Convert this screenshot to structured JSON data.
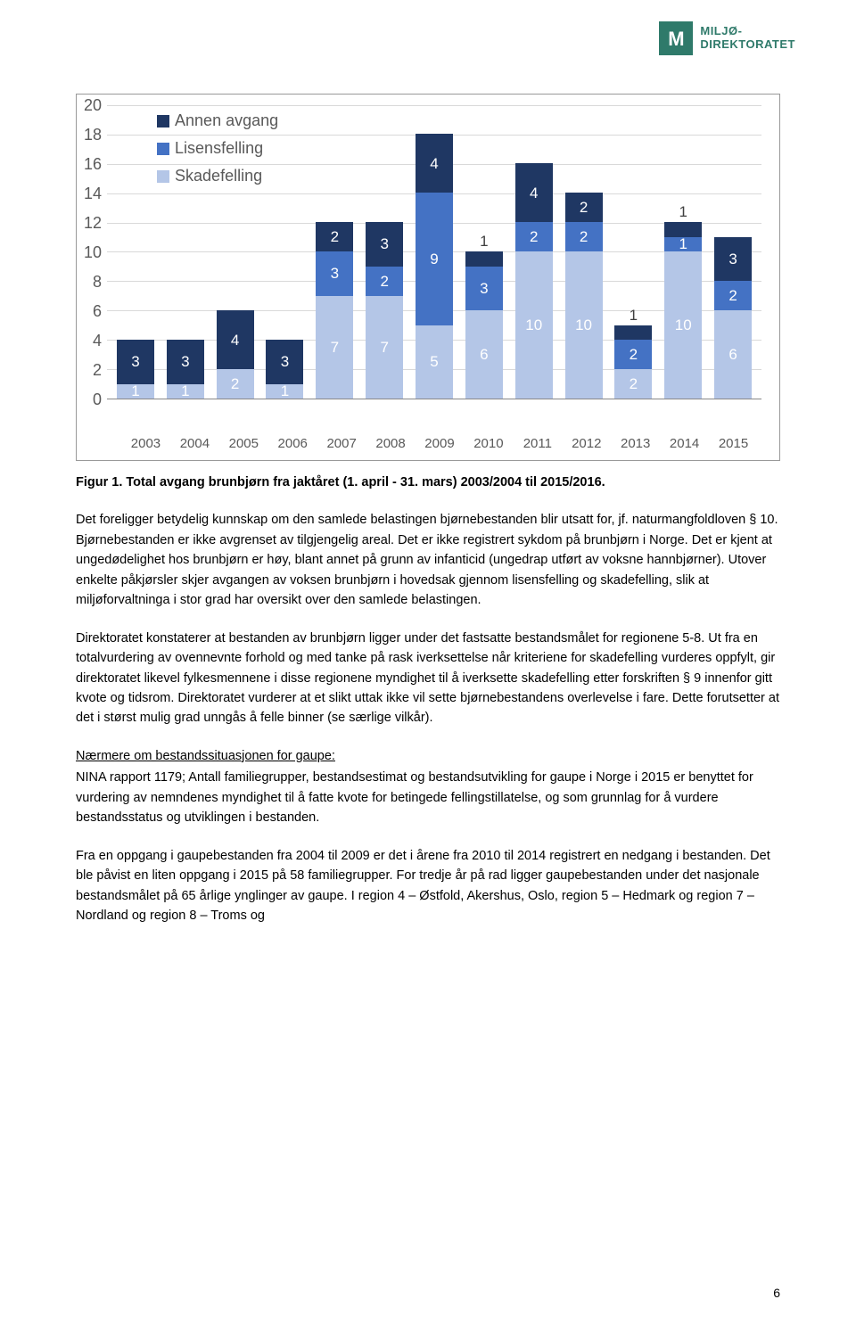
{
  "logo": {
    "line1": "MILJØ-",
    "line2": "DIREKTORATET",
    "letter": "M"
  },
  "chart": {
    "type": "stacked-bar",
    "ylim": [
      0,
      20
    ],
    "ytick_step": 2,
    "y_ticks": [
      "20",
      "18",
      "16",
      "14",
      "12",
      "10",
      "8",
      "6",
      "4",
      "2",
      "0"
    ],
    "grid_color": "#d9d9d9",
    "axis_text_color": "#595959",
    "years": [
      "2003",
      "2004",
      "2005",
      "2006",
      "2007",
      "2008",
      "2009",
      "2010",
      "2011",
      "2012",
      "2013",
      "2014",
      "2015"
    ],
    "legend": [
      {
        "label": "Annen avgang",
        "color": "#1f3763"
      },
      {
        "label": "Lisensfelling",
        "color": "#4472c4"
      },
      {
        "label": "Skadefelling",
        "color": "#b4c6e7"
      }
    ],
    "stacks": [
      [
        {
          "v": 1,
          "c": "#b4c6e7"
        },
        {
          "v": 3,
          "c": "#1f3763"
        }
      ],
      [
        {
          "v": 1,
          "c": "#b4c6e7"
        },
        {
          "v": 3,
          "c": "#1f3763"
        }
      ],
      [
        {
          "v": 2,
          "c": "#b4c6e7"
        },
        {
          "v": 4,
          "c": "#1f3763"
        }
      ],
      [
        {
          "v": 1,
          "c": "#b4c6e7"
        },
        {
          "v": 3,
          "c": "#1f3763"
        }
      ],
      [
        {
          "v": 7,
          "c": "#b4c6e7"
        },
        {
          "v": 3,
          "c": "#4472c4"
        },
        {
          "v": 2,
          "c": "#1f3763"
        }
      ],
      [
        {
          "v": 7,
          "c": "#b4c6e7"
        },
        {
          "v": 2,
          "c": "#4472c4"
        },
        {
          "v": 3,
          "c": "#1f3763"
        }
      ],
      [
        {
          "v": 5,
          "c": "#b4c6e7"
        },
        {
          "v": 9,
          "c": "#4472c4"
        },
        {
          "v": 4,
          "c": "#1f3763"
        }
      ],
      [
        {
          "v": 6,
          "c": "#b4c6e7"
        },
        {
          "v": 3,
          "c": "#4472c4"
        },
        {
          "v": 1,
          "c": "#1f3763",
          "outside": true
        }
      ],
      [
        {
          "v": 10,
          "c": "#b4c6e7"
        },
        {
          "v": 2,
          "c": "#4472c4"
        },
        {
          "v": 4,
          "c": "#1f3763"
        }
      ],
      [
        {
          "v": 10,
          "c": "#b4c6e7"
        },
        {
          "v": 2,
          "c": "#4472c4"
        },
        {
          "v": 2,
          "c": "#1f3763"
        }
      ],
      [
        {
          "v": 2,
          "c": "#b4c6e7"
        },
        {
          "v": 2,
          "c": "#4472c4"
        },
        {
          "v": 1,
          "c": "#1f3763",
          "outside": true
        }
      ],
      [
        {
          "v": 10,
          "c": "#b4c6e7"
        },
        {
          "v": 1,
          "c": "#4472c4"
        },
        {
          "v": 1,
          "c": "#1f3763",
          "outside": true
        }
      ],
      [
        {
          "v": 6,
          "c": "#b4c6e7"
        },
        {
          "v": 2,
          "c": "#4472c4"
        },
        {
          "v": 3,
          "c": "#1f3763"
        }
      ]
    ]
  },
  "caption": "Figur 1. Total avgang brunbjørn fra jaktåret (1. april - 31. mars) 2003/2004 til 2015/2016.",
  "paragraphs": [
    "Det foreligger betydelig kunnskap om den samlede belastingen bjørnebestanden blir utsatt for, jf. naturmangfoldloven § 10. Bjørnebestanden er ikke avgrenset av tilgjengelig areal. Det er ikke registrert sykdom på brunbjørn i Norge. Det er kjent at ungedødelighet hos brunbjørn er høy, blant annet på grunn av infanticid (ungedrap utført av voksne hannbjørner). Utover enkelte påkjørsler skjer avgangen av voksen brunbjørn i hovedsak gjennom lisensfelling og skadefelling, slik at miljøforvaltninga i stor grad har oversikt over den samlede belastingen.",
    "Direktoratet konstaterer at bestanden av brunbjørn ligger under det fastsatte bestandsmålet for regionene 5-8. Ut fra en totalvurdering av ovennevnte forhold og med tanke på rask iverksettelse når kriteriene for skadefelling vurderes oppfylt, gir direktoratet likevel fylkesmennene i disse regionene myndighet til å iverksette skadefelling etter forskriften § 9 innenfor gitt kvote og tidsrom. Direktoratet vurderer at et slikt uttak ikke vil sette bjørnebestandens overlevelse i fare. Dette forutsetter at det i størst mulig grad unngås å felle binner (se særlige vilkår)."
  ],
  "section_heading": "Nærmere om bestandssituasjonen for gaupe:",
  "paragraphs2": [
    "NINA rapport 1179; Antall familiegrupper, bestandsestimat og bestandsutvikling for gaupe i Norge i 2015 er benyttet for vurdering av nemndenes myndighet til å fatte kvote for betingede fellingstillatelse, og som grunnlag for å vurdere bestandsstatus og utviklingen i bestanden.",
    "Fra en oppgang i gaupebestanden fra 2004 til 2009 er det i årene fra 2010 til 2014 registrert en nedgang i bestanden. Det ble påvist en liten oppgang i 2015 på 58 familiegrupper. For tredje år på rad ligger gaupebestanden under det nasjonale bestandsmålet på 65 årlige ynglinger av gaupe. I region 4 – Østfold, Akershus, Oslo, region 5 – Hedmark og region 7 – Nordland og region 8 – Troms og"
  ],
  "page_number": "6"
}
